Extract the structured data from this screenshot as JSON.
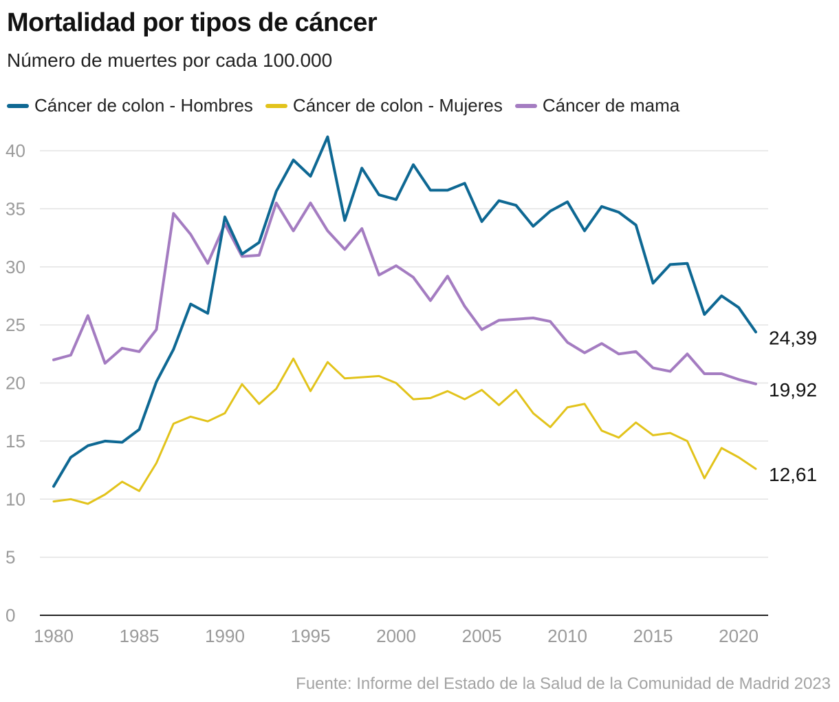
{
  "title": "Mortalidad por tipos de cáncer",
  "subtitle": "Número de muertes por cada 100.000",
  "source": "Fuente: Informe del Estado de la Salud de la Comunidad de Madrid 2023",
  "chart_data": {
    "type": "line",
    "x": [
      1980,
      1981,
      1982,
      1983,
      1984,
      1985,
      1986,
      1987,
      1988,
      1989,
      1990,
      1991,
      1992,
      1993,
      1994,
      1995,
      1996,
      1997,
      1998,
      1999,
      2000,
      2001,
      2002,
      2003,
      2004,
      2005,
      2006,
      2007,
      2008,
      2009,
      2010,
      2011,
      2012,
      2013,
      2014,
      2015,
      2016,
      2017,
      2018,
      2019,
      2020,
      2021
    ],
    "ylim": [
      0,
      40
    ],
    "yticks": [
      0,
      5,
      10,
      15,
      20,
      25,
      30,
      35,
      40
    ],
    "xticks": [
      1980,
      1985,
      1990,
      1995,
      2000,
      2005,
      2010,
      2015,
      2020
    ],
    "grid": true,
    "legend_position": "top-left",
    "series": [
      {
        "name": "Cáncer de colon - Hombres",
        "color": "#0e6893",
        "end_label": "24,39",
        "values": [
          11.1,
          13.6,
          14.6,
          15.0,
          14.9,
          16.0,
          20.1,
          22.9,
          26.8,
          26.0,
          34.3,
          31.1,
          32.1,
          36.5,
          39.2,
          37.8,
          41.2,
          34.0,
          38.5,
          36.2,
          35.8,
          38.8,
          36.6,
          36.6,
          37.2,
          33.9,
          35.7,
          35.3,
          33.5,
          34.8,
          35.6,
          33.1,
          35.2,
          34.7,
          33.6,
          28.6,
          30.2,
          30.3,
          25.9,
          27.5,
          26.5,
          24.39
        ]
      },
      {
        "name": "Cáncer de colon - Mujeres",
        "color": "#e2c31b",
        "end_label": "12,61",
        "values": [
          9.8,
          10.0,
          9.6,
          10.4,
          11.5,
          10.7,
          13.1,
          16.5,
          17.1,
          16.7,
          17.4,
          19.9,
          18.2,
          19.5,
          22.1,
          19.3,
          21.8,
          20.4,
          20.5,
          20.6,
          20.0,
          18.6,
          18.7,
          19.3,
          18.6,
          19.4,
          18.1,
          19.4,
          17.4,
          16.2,
          17.9,
          18.2,
          15.9,
          15.3,
          16.6,
          15.5,
          15.7,
          15.0,
          11.8,
          14.4,
          13.6,
          12.61
        ]
      },
      {
        "name": "Cáncer de mama",
        "color": "#a47cc1",
        "end_label": "19,92",
        "values": [
          22.0,
          22.4,
          25.8,
          21.7,
          23.0,
          22.7,
          24.6,
          34.6,
          32.8,
          30.3,
          33.7,
          30.9,
          31.0,
          35.5,
          33.1,
          35.5,
          33.1,
          31.5,
          33.3,
          29.3,
          30.1,
          29.1,
          27.1,
          29.2,
          26.6,
          24.6,
          25.4,
          25.5,
          25.6,
          25.3,
          23.5,
          22.6,
          23.4,
          22.5,
          22.7,
          21.3,
          21.0,
          22.5,
          20.8,
          20.8,
          20.3,
          19.92
        ]
      }
    ]
  }
}
